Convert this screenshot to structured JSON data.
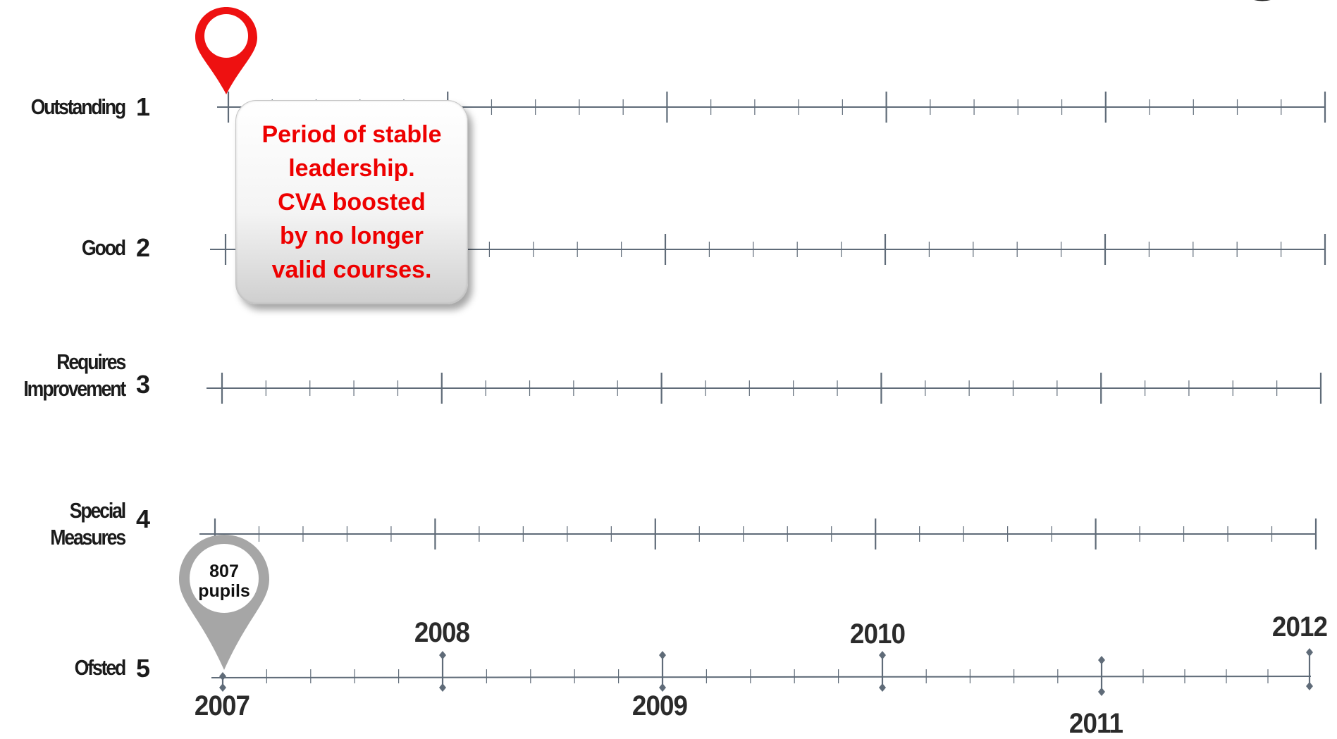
{
  "rows": [
    {
      "label": "Outstanding",
      "number": "1"
    },
    {
      "label": "Good",
      "number": "2"
    },
    {
      "label": "Requires\nImprovement",
      "number": "3"
    },
    {
      "label": "Special\nMeasures",
      "number": "4"
    },
    {
      "label": "Ofsted",
      "number": "5"
    }
  ],
  "years": [
    "2007",
    "2008",
    "2009",
    "2010",
    "2011",
    "2012"
  ],
  "callout": {
    "text": "Period of stable\nleadership.\nCVA boosted\nby no longer\nvalid courses."
  },
  "marker": {
    "text": "807\npupils"
  },
  "colors": {
    "axis": "#5f6b78",
    "callout_text": "#ee0000",
    "location_pin": "#ee1111",
    "pupils_pin": "#a6a6a6",
    "logo_ring": "#e8b800"
  },
  "icons": [
    "location-pin-icon",
    "pupils-pin-icon",
    "school-logo-icon"
  ]
}
